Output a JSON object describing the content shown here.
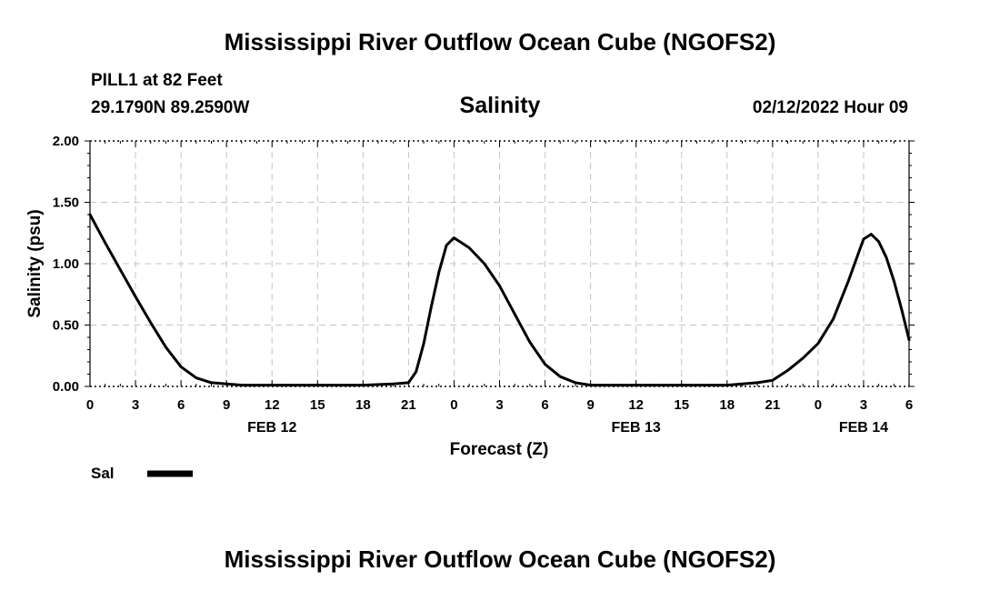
{
  "header": {
    "title": "Mississippi River Outflow Ocean Cube (NGOFS2)",
    "station": "PILL1 at 82 Feet",
    "coords": "29.1790N  89.2590W",
    "subtitle": "Salinity",
    "timestamp": "02/12/2022 Hour 09"
  },
  "footer": {
    "title": "Mississippi River Outflow Ocean Cube (NGOFS2)"
  },
  "chart_data": {
    "type": "line",
    "title": "Salinity",
    "xlabel": "Forecast (Z)",
    "ylabel": "Salinity (psu)",
    "ylim": [
      0,
      2
    ],
    "xlim": [
      0,
      54
    ],
    "x_unit": "hours from 0Z FEB 12",
    "yticks": [
      "0.00",
      "0.50",
      "1.00",
      "1.50",
      "2.00"
    ],
    "xtick_labels": [
      "0",
      "3",
      "6",
      "9",
      "12",
      "15",
      "18",
      "21",
      "0",
      "3",
      "6",
      "9",
      "12",
      "15",
      "18",
      "21",
      "0",
      "3",
      "6"
    ],
    "date_labels": [
      {
        "label": "FEB 12",
        "hour": 12
      },
      {
        "label": "FEB 13",
        "hour": 36
      },
      {
        "label": "FEB 14",
        "hour": 51
      }
    ],
    "grid": true,
    "legend_position": "bottom-left",
    "series": [
      {
        "name": "Sal",
        "color": "#000000",
        "x": [
          0,
          1,
          2,
          3,
          4,
          5,
          6,
          7,
          8,
          9,
          10,
          12,
          15,
          18,
          20,
          21,
          21.5,
          22,
          22.5,
          23,
          23.5,
          24,
          25,
          26,
          27,
          28,
          29,
          30,
          31,
          32,
          33,
          36,
          39,
          42,
          44,
          45,
          46,
          47,
          48,
          49,
          50,
          50.5,
          51,
          51.5,
          52,
          52.5,
          53,
          53.5,
          54
        ],
        "y": [
          1.4,
          1.17,
          0.95,
          0.73,
          0.52,
          0.32,
          0.16,
          0.07,
          0.03,
          0.02,
          0.01,
          0.01,
          0.01,
          0.01,
          0.02,
          0.03,
          0.12,
          0.35,
          0.65,
          0.93,
          1.15,
          1.21,
          1.13,
          1.0,
          0.82,
          0.59,
          0.36,
          0.18,
          0.08,
          0.03,
          0.01,
          0.01,
          0.01,
          0.01,
          0.03,
          0.05,
          0.13,
          0.23,
          0.35,
          0.55,
          0.86,
          1.03,
          1.2,
          1.24,
          1.18,
          1.05,
          0.86,
          0.63,
          0.38
        ]
      }
    ]
  }
}
